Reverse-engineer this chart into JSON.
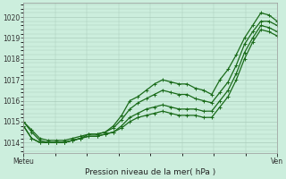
{
  "bg_color": "#cceedd",
  "grid_color": "#aaccbb",
  "line_color": "#1a6b1a",
  "xlabel": "Pression niveau de la mer( hPa )",
  "x_left_label": "Meteu",
  "x_right_label": "Ven",
  "ylim": [
    1013.5,
    1020.7
  ],
  "yticks": [
    1014,
    1015,
    1016,
    1017,
    1018,
    1019,
    1020
  ],
  "series": [
    [
      1015.0,
      1014.6,
      1014.2,
      1014.1,
      1014.1,
      1014.1,
      1014.2,
      1014.3,
      1014.4,
      1014.4,
      1014.5,
      1014.8,
      1015.3,
      1016.0,
      1016.2,
      1016.5,
      1016.8,
      1017.0,
      1016.9,
      1016.8,
      1016.8,
      1016.6,
      1016.5,
      1016.3,
      1017.0,
      1017.5,
      1018.2,
      1019.0,
      1019.6,
      1020.2,
      1020.1,
      1019.8
    ],
    [
      1014.8,
      1014.2,
      1014.0,
      1014.0,
      1014.0,
      1014.0,
      1014.1,
      1014.2,
      1014.3,
      1014.3,
      1014.4,
      1014.5,
      1014.8,
      1015.2,
      1015.4,
      1015.6,
      1015.7,
      1015.8,
      1015.7,
      1015.6,
      1015.6,
      1015.6,
      1015.5,
      1015.5,
      1016.0,
      1016.5,
      1017.3,
      1018.3,
      1019.0,
      1019.6,
      1019.5,
      1019.3
    ],
    [
      1014.8,
      1014.2,
      1014.0,
      1014.0,
      1014.0,
      1014.0,
      1014.1,
      1014.2,
      1014.3,
      1014.3,
      1014.4,
      1014.5,
      1014.7,
      1015.0,
      1015.2,
      1015.3,
      1015.4,
      1015.5,
      1015.4,
      1015.3,
      1015.3,
      1015.3,
      1015.2,
      1015.2,
      1015.7,
      1016.2,
      1017.0,
      1018.0,
      1018.8,
      1019.4,
      1019.3,
      1019.1
    ],
    [
      1015.0,
      1014.5,
      1014.1,
      1014.0,
      1014.0,
      1014.0,
      1014.1,
      1014.2,
      1014.4,
      1014.4,
      1014.5,
      1014.7,
      1015.1,
      1015.6,
      1015.9,
      1016.1,
      1016.3,
      1016.5,
      1016.4,
      1016.3,
      1016.3,
      1016.1,
      1016.0,
      1015.9,
      1016.4,
      1016.9,
      1017.7,
      1018.7,
      1019.3,
      1019.8,
      1019.8,
      1019.6
    ]
  ]
}
